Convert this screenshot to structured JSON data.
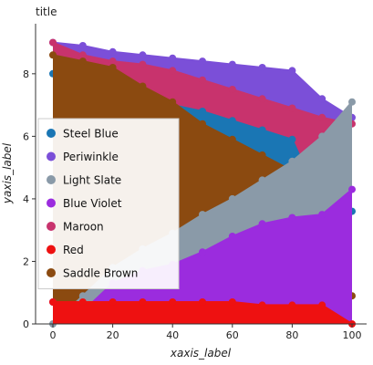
{
  "chart_data": {
    "type": "area",
    "title": "title",
    "xlabel": "xaxis_label",
    "ylabel": "yaxis_label",
    "xlim": [
      0,
      100
    ],
    "ylim": [
      0,
      9.6
    ],
    "x": [
      0,
      10,
      20,
      30,
      40,
      50,
      60,
      70,
      80,
      90,
      100
    ],
    "x_ticks": [
      0,
      20,
      40,
      60,
      80,
      100
    ],
    "y_ticks": [
      0,
      2,
      4,
      6,
      8
    ],
    "grid": false,
    "legend_position": "center-left",
    "series": [
      {
        "name": "Steel Blue",
        "color": "#1a76b4",
        "values": [
          8.0,
          7.8,
          7.6,
          7.3,
          7.0,
          6.8,
          6.5,
          6.2,
          5.9,
          3.8,
          3.6
        ]
      },
      {
        "name": "Periwinkle",
        "color": "#7b4fd8",
        "values": [
          9.0,
          8.9,
          8.7,
          8.6,
          8.5,
          8.4,
          8.3,
          8.2,
          8.1,
          7.2,
          6.6
        ]
      },
      {
        "name": "Light Slate",
        "color": "#8a9aa8",
        "values": [
          0.0,
          0.9,
          1.8,
          2.4,
          2.9,
          3.5,
          4.0,
          4.6,
          5.2,
          6.0,
          7.1
        ]
      },
      {
        "name": "Blue Violet",
        "color": "#9b2cde",
        "values": [
          0.7,
          0.4,
          1.3,
          1.7,
          1.9,
          2.3,
          2.8,
          3.2,
          3.4,
          3.5,
          4.3
        ]
      },
      {
        "name": "Maroon",
        "color": "#c8336d",
        "values": [
          9.0,
          8.6,
          8.4,
          8.3,
          8.1,
          7.8,
          7.5,
          7.2,
          6.9,
          6.6,
          6.4
        ]
      },
      {
        "name": "Red",
        "color": "#ee1111",
        "values": [
          0.7,
          0.7,
          0.7,
          0.7,
          0.7,
          0.7,
          0.7,
          0.6,
          0.6,
          0.6,
          0.0
        ]
      },
      {
        "name": "Saddle Brown",
        "color": "#8b4a10",
        "values": [
          8.6,
          8.4,
          8.2,
          7.6,
          7.1,
          6.4,
          5.9,
          5.4,
          4.9,
          3.0,
          0.9
        ]
      }
    ],
    "draw_order": [
      "Periwinkle",
      "Maroon",
      "Steel Blue",
      "Saddle Brown",
      "Light Slate",
      "Blue Violet",
      "Red"
    ]
  }
}
